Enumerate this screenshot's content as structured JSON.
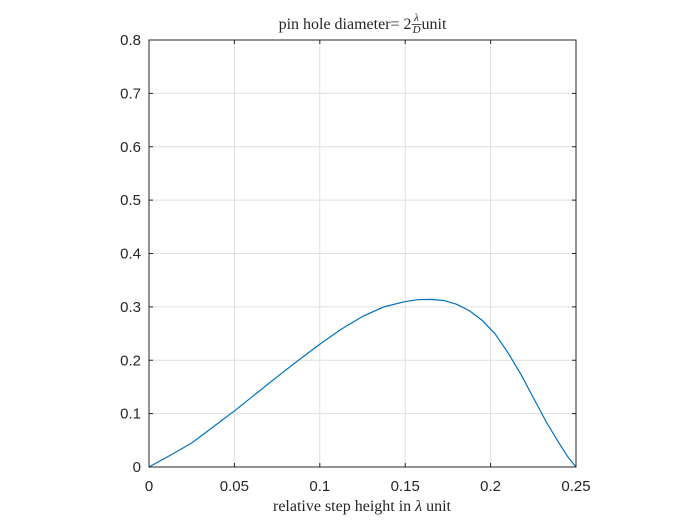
{
  "chart_data": {
    "type": "line",
    "title": {
      "prefix": "pin hole diameter= 2 ",
      "frac_num": "λ",
      "frac_den": "D",
      "suffix": " unit"
    },
    "xlabel": {
      "prefix": "relative step height in ",
      "symbol": "λ",
      "suffix": " unit"
    },
    "ylabel": "",
    "xlim": [
      0,
      0.25
    ],
    "ylim": [
      0,
      0.8
    ],
    "xticks": [
      0,
      0.05,
      0.1,
      0.15,
      0.2,
      0.25
    ],
    "xtick_labels": [
      "0",
      "0.05",
      "0.1",
      "0.15",
      "0.2",
      "0.25"
    ],
    "yticks": [
      0,
      0.1,
      0.2,
      0.3,
      0.4,
      0.5,
      0.6,
      0.7,
      0.8
    ],
    "ytick_labels": [
      "0",
      "0.1",
      "0.2",
      "0.3",
      "0.4",
      "0.5",
      "0.6",
      "0.7",
      "0.8"
    ],
    "grid": true,
    "series": [
      {
        "color": "#0072BD",
        "x": [
          0,
          0.0125,
          0.025,
          0.0375,
          0.05,
          0.0625,
          0.075,
          0.0875,
          0.1,
          0.1125,
          0.125,
          0.1375,
          0.15,
          0.1575,
          0.165,
          0.1725,
          0.18,
          0.1875,
          0.195,
          0.2025,
          0.21,
          0.2175,
          0.225,
          0.2325,
          0.24,
          0.245,
          0.25
        ],
        "y": [
          0,
          0.022,
          0.045,
          0.075,
          0.105,
          0.137,
          0.169,
          0.2,
          0.23,
          0.258,
          0.282,
          0.3,
          0.31,
          0.3135,
          0.314,
          0.312,
          0.305,
          0.293,
          0.275,
          0.25,
          0.215,
          0.175,
          0.13,
          0.085,
          0.045,
          0.02,
          0
        ]
      }
    ]
  }
}
